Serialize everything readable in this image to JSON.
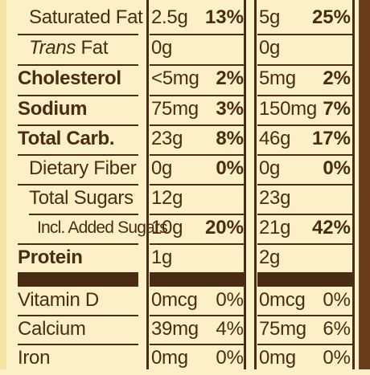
{
  "rows": [
    {
      "label": "Saturated Fat",
      "amt1": "2.5g",
      "dv1": "13%",
      "amt2": "5g",
      "dv2": "25%"
    },
    {
      "label_italic": "Trans",
      "label_rest": " Fat",
      "amt1": "0g",
      "dv1": "",
      "amt2": "0g",
      "dv2": ""
    },
    {
      "label": "Cholesterol",
      "amt1": "<5mg",
      "dv1": "2%",
      "amt2": "5mg",
      "dv2": "2%"
    },
    {
      "label": "Sodium",
      "amt1": "75mg",
      "dv1": "3%",
      "amt2": "150mg",
      "dv2": "7%"
    },
    {
      "label": "Total Carb.",
      "amt1": "23g",
      "dv1": "8%",
      "amt2": "46g",
      "dv2": "17%"
    },
    {
      "label": "Dietary Fiber",
      "amt1": "0g",
      "dv1": "0%",
      "amt2": "0g",
      "dv2": "0%"
    },
    {
      "label": "Total Sugars",
      "amt1": "12g",
      "dv1": "",
      "amt2": "23g",
      "dv2": ""
    },
    {
      "label": "Incl. Added Sugars",
      "amt1": "10g",
      "dv1": "20%",
      "amt2": "21g",
      "dv2": "42%"
    },
    {
      "label": "Protein",
      "amt1": "1g",
      "dv1": "",
      "amt2": "2g",
      "dv2": ""
    },
    {
      "label": "Vitamin D",
      "amt1": "0mcg",
      "dv1": "0%",
      "amt2": "0mcg",
      "dv2": "0%"
    },
    {
      "label": "Calcium",
      "amt1": "39mg",
      "dv1": "4%",
      "amt2": "75mg",
      "dv2": "6%"
    },
    {
      "label": "Iron",
      "amt1": "0mg",
      "dv1": "0%",
      "amt2": "0mg",
      "dv2": "0%"
    }
  ],
  "colors": {
    "background": "#fcf1c6",
    "ink": "#4a2b14",
    "edge": "#6a3d1b"
  }
}
